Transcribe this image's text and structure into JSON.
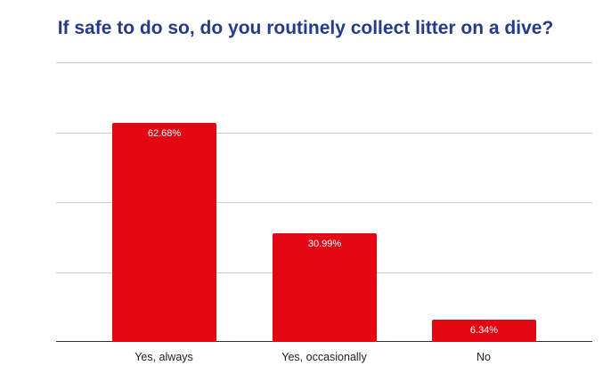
{
  "chart_data": {
    "type": "bar",
    "title": "If safe to do so, do you routinely collect litter on a dive?",
    "categories": [
      "Yes, always",
      "Yes, occasionally",
      "No"
    ],
    "values": [
      62.68,
      30.99,
      6.34
    ],
    "data_labels": [
      "62.68%",
      "30.99%",
      "6.34%"
    ],
    "xlabel": "",
    "ylabel": "",
    "ylim": [
      0,
      80
    ],
    "y_gridlines": [
      0,
      20,
      40,
      60,
      80
    ],
    "y_tick_labels_visible": false,
    "grid": true,
    "legend": "none",
    "bar_color": "#e30613",
    "title_color": "#253a8a"
  }
}
